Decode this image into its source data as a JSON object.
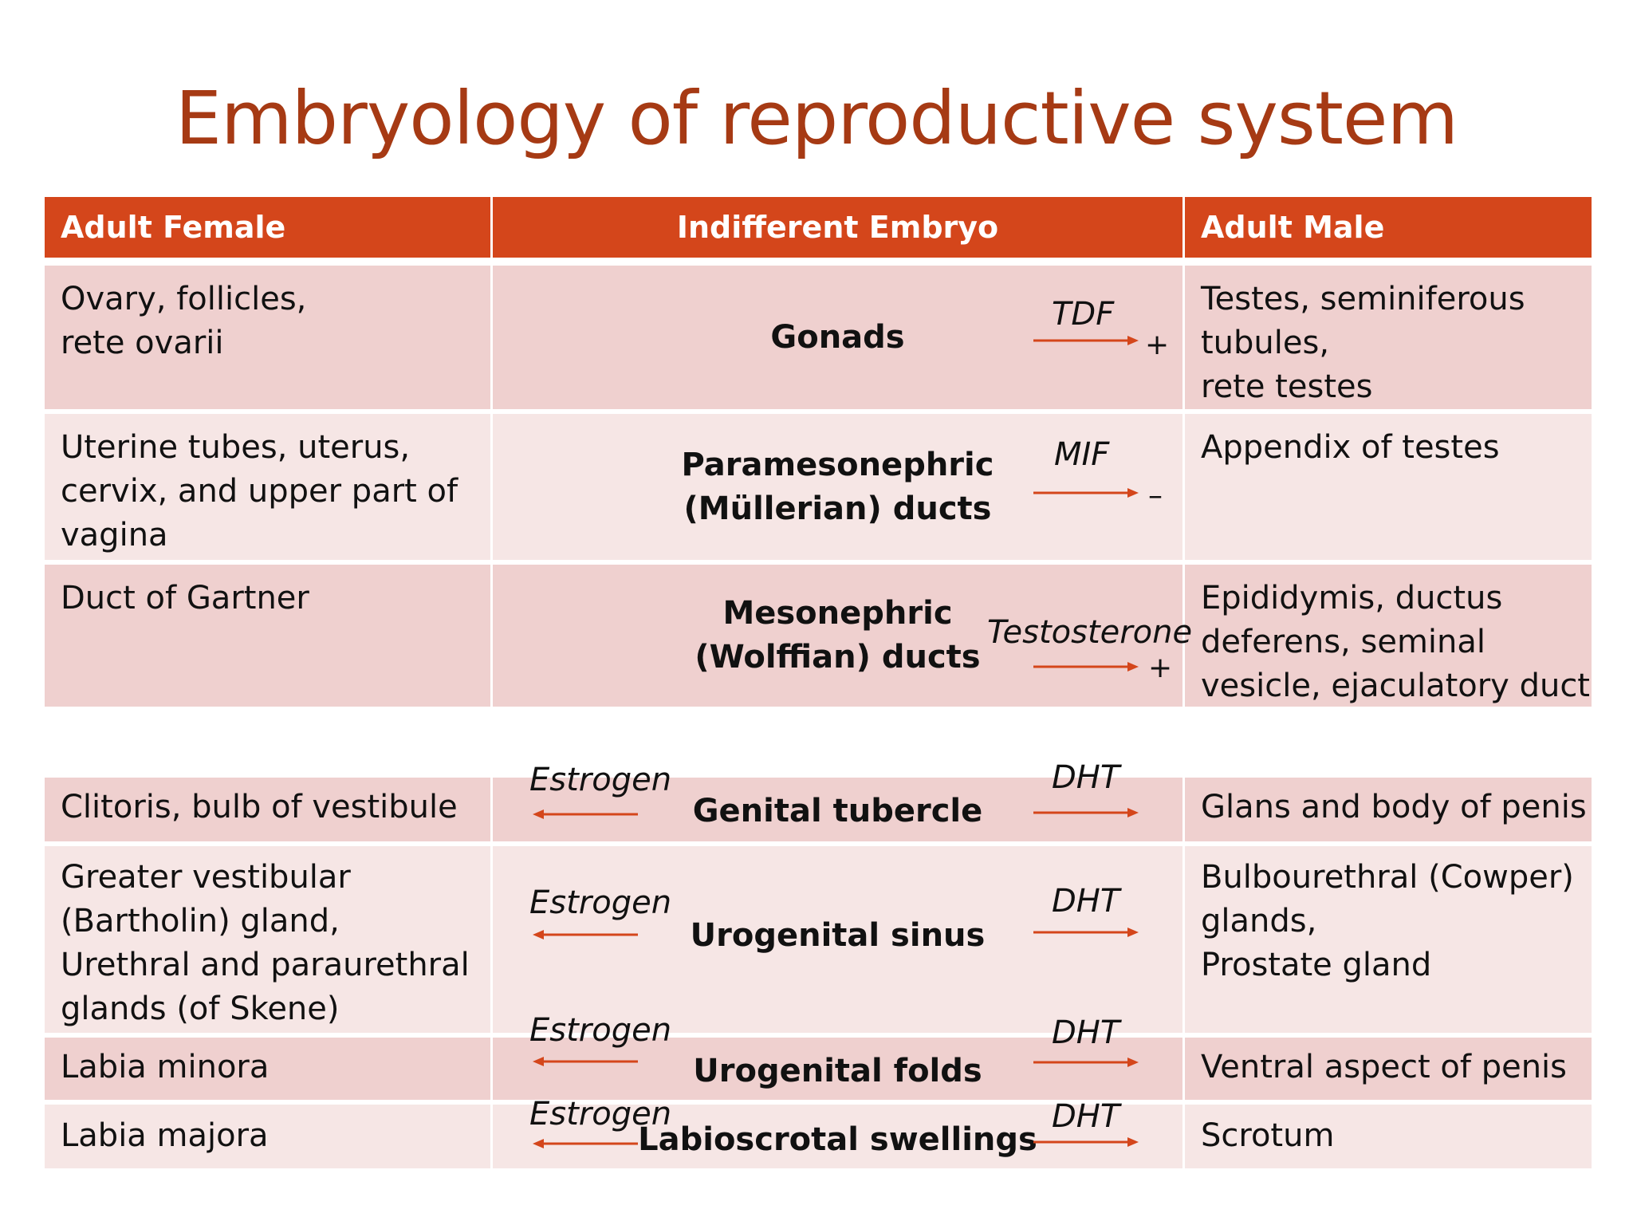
{
  "title": "Embryology of reproductive system",
  "headers": [
    "Adult Female",
    "Indifferent Embryo",
    "Adult Male"
  ],
  "rows": [
    {
      "female": [
        "Ovary, follicles,",
        "rete ovarii"
      ],
      "embryo": [
        "Gonads"
      ],
      "male": [
        "Testes, seminiferous",
        "tubules,",
        "rete testes"
      ],
      "hormone": "TDF",
      "effect": "+"
    },
    {
      "female": [
        "Uterine tubes, uterus,",
        "cervix, and upper part of",
        "vagina"
      ],
      "embryo": [
        "Paramesonephric",
        "(Müllerian) ducts"
      ],
      "male": [
        "Appendix of testes"
      ],
      "hormone": "MIF",
      "effect": "–"
    },
    {
      "female": [
        "Duct of Gartner"
      ],
      "embryo": [
        "Mesonephric",
        "(Wolffian) ducts"
      ],
      "male": [
        "Epididymis, ductus",
        "deferens, seminal",
        "vesicle, ejaculatory duct"
      ],
      "hormone": "Testosterone",
      "effect": "+"
    },
    {
      "female": [
        "Clitoris, bulb of vestibule"
      ],
      "embryo": [
        "Genital tubercle"
      ],
      "male": [
        "Glans and body of penis"
      ],
      "hormone_left": "Estrogen",
      "hormone_right": "DHT"
    },
    {
      "female": [
        "Greater vestibular",
        "(Bartholin) gland,",
        "Urethral and paraurethral",
        "glands (of Skene)"
      ],
      "embryo": [
        "Urogenital sinus"
      ],
      "male": [
        "Bulbourethral (Cowper)",
        "glands,",
        "Prostate gland"
      ],
      "hormone_left": "Estrogen",
      "hormone_right": "DHT"
    },
    {
      "female": [
        "Labia minora"
      ],
      "embryo": [
        "Urogenital folds"
      ],
      "male": [
        "Ventral aspect of penis"
      ],
      "hormone_left": "Estrogen",
      "hormone_right": "DHT"
    },
    {
      "female": [
        "Labia majora"
      ],
      "embryo": [
        "Labioscrotal swellings"
      ],
      "male": [
        "Scrotum"
      ],
      "hormone_left": "Estrogen",
      "hormone_right": "DHT"
    }
  ],
  "colors": {
    "title": "#a63a14",
    "header": "#d4461b",
    "row_dark": "#efd0cf",
    "row_light": "#f6e6e5",
    "arrow": "#d4461b"
  }
}
